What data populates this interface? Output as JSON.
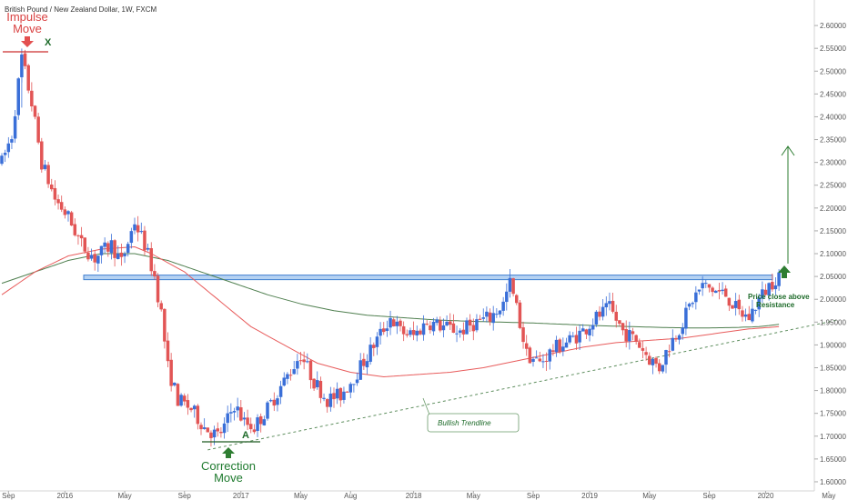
{
  "header": {
    "title": "British Pound / New Zealand Dollar, 1W, FXCM"
  },
  "annotations": {
    "impulse_line1": "Impulse",
    "impulse_line2": "Move",
    "impulse_marker": "X",
    "correction_line1": "Correction",
    "correction_line2": "Move",
    "correction_marker": "A",
    "breakout_line1": "Price close above",
    "breakout_line2": "Resistance",
    "trendline_label": "Bullish Trendline"
  },
  "chart_data": {
    "type": "candlestick",
    "title": "British Pound / New Zealand Dollar, 1W, FXCM",
    "y_axis": {
      "range": [
        1.58,
        2.64
      ],
      "ticks": [
        1.6,
        1.65,
        1.7,
        1.75,
        1.8,
        1.85,
        1.9,
        1.95,
        2.0,
        2.05,
        2.1,
        2.15,
        2.2,
        2.25,
        2.3,
        2.35,
        2.4,
        2.45,
        2.5,
        2.55,
        2.6
      ],
      "tick_labels": [
        "1.60000",
        "1.65000",
        "1.70000",
        "1.75000",
        "1.80000",
        "1.85000",
        "1.90000",
        "1.95000",
        "2.00000",
        "2.05000",
        "2.10000",
        "2.15000",
        "2.20000",
        "2.25000",
        "2.30000",
        "2.35000",
        "2.40000",
        "2.45000",
        "2.50000",
        "2.55000",
        "2.60000"
      ]
    },
    "x_axis": {
      "labels": [
        "Sep",
        "2016",
        "May",
        "Sep",
        "2017",
        "May",
        "Aug",
        "2018",
        "May",
        "Sep",
        "2019",
        "May",
        "Sep",
        "2020",
        "May"
      ],
      "label_week_index": [
        2,
        19,
        37,
        55,
        72,
        90,
        105,
        124,
        142,
        160,
        177,
        195,
        213,
        230,
        249
      ]
    },
    "week_count": 252,
    "resistance_zone": [
      2.043,
      2.053
    ],
    "trendline": {
      "from": {
        "week": 62,
        "price": 1.67
      },
      "to": {
        "week": 252,
        "price": 1.955
      }
    },
    "price_path": [
      [
        0,
        2.3
      ],
      [
        3,
        2.36
      ],
      [
        6,
        2.53
      ],
      [
        9,
        2.43
      ],
      [
        12,
        2.3
      ],
      [
        16,
        2.22
      ],
      [
        20,
        2.18
      ],
      [
        24,
        2.12
      ],
      [
        28,
        2.09
      ],
      [
        33,
        2.12
      ],
      [
        36,
        2.08
      ],
      [
        40,
        2.17
      ],
      [
        43,
        2.12
      ],
      [
        46,
        2.05
      ],
      [
        48,
        1.97
      ],
      [
        50,
        1.85
      ],
      [
        53,
        1.78
      ],
      [
        57,
        1.76
      ],
      [
        61,
        1.72
      ],
      [
        65,
        1.7
      ],
      [
        67,
        1.72
      ],
      [
        70,
        1.77
      ],
      [
        73,
        1.73
      ],
      [
        76,
        1.72
      ],
      [
        80,
        1.76
      ],
      [
        85,
        1.82
      ],
      [
        90,
        1.88
      ],
      [
        94,
        1.82
      ],
      [
        98,
        1.78
      ],
      [
        102,
        1.79
      ],
      [
        107,
        1.84
      ],
      [
        112,
        1.9
      ],
      [
        117,
        1.96
      ],
      [
        120,
        1.93
      ],
      [
        124,
        1.92
      ],
      [
        128,
        1.95
      ],
      [
        133,
        1.94
      ],
      [
        138,
        1.93
      ],
      [
        143,
        1.95
      ],
      [
        147,
        1.96
      ],
      [
        151,
        1.99
      ],
      [
        153,
        2.035
      ],
      [
        155,
        1.98
      ],
      [
        158,
        1.88
      ],
      [
        162,
        1.86
      ],
      [
        166,
        1.89
      ],
      [
        171,
        1.91
      ],
      [
        175,
        1.93
      ],
      [
        179,
        1.96
      ],
      [
        183,
        1.98
      ],
      [
        187,
        1.93
      ],
      [
        191,
        1.91
      ],
      [
        195,
        1.87
      ],
      [
        198,
        1.85
      ],
      [
        201,
        1.9
      ],
      [
        205,
        1.95
      ],
      [
        208,
        2.0
      ],
      [
        211,
        2.03
      ],
      [
        214,
        2.02
      ],
      [
        218,
        2.01
      ],
      [
        222,
        1.97
      ],
      [
        225,
        1.96
      ],
      [
        228,
        2.0
      ],
      [
        231,
        2.03
      ],
      [
        234,
        2.055
      ]
    ],
    "sma_fast_path": [
      [
        0,
        2.01
      ],
      [
        10,
        2.06
      ],
      [
        20,
        2.095
      ],
      [
        30,
        2.11
      ],
      [
        40,
        2.115
      ],
      [
        45,
        2.1
      ],
      [
        55,
        2.06
      ],
      [
        65,
        2.0
      ],
      [
        75,
        1.94
      ],
      [
        85,
        1.9
      ],
      [
        95,
        1.86
      ],
      [
        105,
        1.84
      ],
      [
        115,
        1.83
      ],
      [
        125,
        1.835
      ],
      [
        135,
        1.84
      ],
      [
        145,
        1.85
      ],
      [
        155,
        1.865
      ],
      [
        165,
        1.88
      ],
      [
        175,
        1.895
      ],
      [
        185,
        1.905
      ],
      [
        195,
        1.91
      ],
      [
        205,
        1.915
      ],
      [
        215,
        1.925
      ],
      [
        225,
        1.935
      ],
      [
        234,
        1.94
      ]
    ],
    "sma_slow_path": [
      [
        0,
        2.035
      ],
      [
        10,
        2.06
      ],
      [
        20,
        2.085
      ],
      [
        30,
        2.1
      ],
      [
        40,
        2.1
      ],
      [
        50,
        2.085
      ],
      [
        60,
        2.06
      ],
      [
        70,
        2.035
      ],
      [
        80,
        2.01
      ],
      [
        90,
        1.99
      ],
      [
        100,
        1.975
      ],
      [
        110,
        1.965
      ],
      [
        120,
        1.96
      ],
      [
        130,
        1.955
      ],
      [
        140,
        1.952
      ],
      [
        150,
        1.95
      ],
      [
        160,
        1.948
      ],
      [
        170,
        1.945
      ],
      [
        180,
        1.942
      ],
      [
        190,
        1.94
      ],
      [
        200,
        1.938
      ],
      [
        210,
        1.937
      ],
      [
        220,
        1.938
      ],
      [
        228,
        1.94
      ],
      [
        234,
        1.945
      ]
    ],
    "colors": {
      "bull": "#3a6fd8",
      "bear": "#e25555",
      "sma_fast": "#e85c5c",
      "sma_slow": "#4f7f4f",
      "zone_fill": "#9cc3ee",
      "zone_stroke": "#3f7fd0",
      "trendline": "#5e8e5e",
      "projection_arrow": "#2e7d32"
    }
  }
}
